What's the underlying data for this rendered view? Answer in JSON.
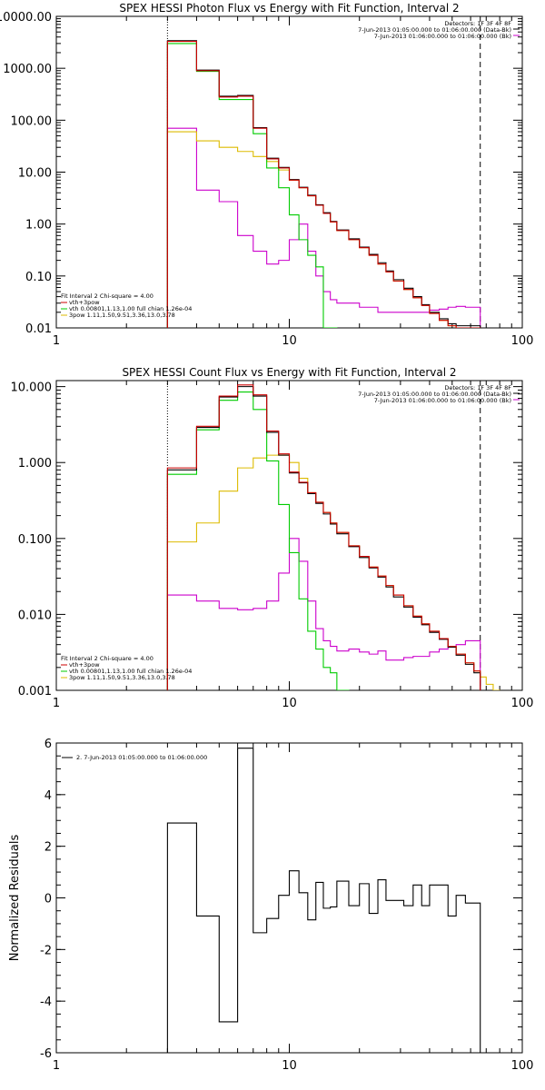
{
  "colors": {
    "total": "#000000",
    "vth_3pow": "#cc0000",
    "vth": "#00cc00",
    "three_pow": "#ddbb00",
    "bk": "#cc00cc"
  },
  "chart_data": [
    {
      "type": "line",
      "title": "SPEX HESSI Photon Flux vs Energy with Fit Function, Interval 2",
      "xlabel": "",
      "ylabel": "",
      "xscale": "log",
      "yscale": "log",
      "xlim": [
        1,
        100
      ],
      "ylim": [
        0.01,
        10000
      ],
      "xticks": [
        1,
        10,
        100
      ],
      "xticklabels": [
        "1",
        "10",
        "100"
      ],
      "yticks": [
        0.01,
        0.1,
        1,
        10,
        100,
        1000,
        10000
      ],
      "yticklabels": [
        "0.01",
        "0.10",
        "1.00",
        "10.00",
        "100.00",
        "1000.00",
        "10000.00"
      ],
      "vlines": [
        {
          "x": 3,
          "style": "dotted"
        },
        {
          "x": 66,
          "style": "dashed"
        }
      ],
      "info_lines": [
        "Detectors: 1F 3F 4F 8F",
        "7-Jun-2013 01:05:00.000 to 01:06:00.000 (Data-Bk)",
        "7-Jun-2013 01:06:00.000 to 01:06:00.000 (Bk)"
      ],
      "fit_label": "Fit Interval 2   Chi-square = 4.00",
      "edges": [
        3,
        4,
        5,
        6,
        7,
        8,
        9,
        10,
        11,
        12,
        13,
        14,
        15,
        16,
        18,
        20,
        22,
        24,
        26,
        28,
        31,
        34,
        37,
        40,
        44,
        48,
        52,
        57,
        62,
        66
      ],
      "series": [
        {
          "name": "vth+3pow",
          "color_key": "vth_3pow",
          "values": [
            3300,
            900,
            280,
            290,
            70,
            18,
            12,
            7,
            5,
            3.5,
            2.3,
            1.6,
            1.1,
            0.75,
            0.5,
            0.35,
            0.25,
            0.17,
            0.12,
            0.08,
            0.055,
            0.038,
            0.027,
            0.019,
            0.014,
            0.011,
            0.01,
            0.01,
            0.01
          ]
        },
        {
          "name": "",
          "color_key": "total",
          "values": [
            3400,
            920,
            290,
            300,
            72,
            18.5,
            12.3,
            7.2,
            5.1,
            3.6,
            2.35,
            1.65,
            1.12,
            0.77,
            0.52,
            0.36,
            0.26,
            0.18,
            0.125,
            0.085,
            0.058,
            0.04,
            0.028,
            0.02,
            0.015,
            0.012,
            0.011,
            0.011,
            0.011
          ]
        },
        {
          "name": "vth 0.00801,1.13,1.00  full chian 1.26e-04",
          "color_key": "vth",
          "values": [
            3000,
            870,
            250,
            250,
            55,
            12,
            5,
            1.5,
            0.5,
            0.25,
            0.15,
            0.01,
            0.01
          ]
        },
        {
          "name": "3pow 1.11,1.50,9.51,3.36,13.0,3.78",
          "color_key": "three_pow",
          "values": [
            60,
            40,
            30,
            25,
            20,
            16,
            11,
            7,
            5,
            3.5,
            2.3,
            1.6,
            1.1,
            0.75,
            0.5,
            0.35,
            0.25,
            0.17,
            0.12,
            0.08,
            0.055,
            0.038,
            0.027,
            0.019,
            0.014,
            0.011,
            0.01,
            0.01,
            0.01
          ]
        },
        {
          "name": "",
          "color_key": "bk",
          "values": [
            70,
            4.5,
            2.7,
            0.6,
            0.3,
            0.17,
            0.2,
            0.5,
            1.0,
            0.3,
            0.1,
            0.05,
            0.035,
            0.03,
            0.03,
            0.025,
            0.025,
            0.02,
            0.02,
            0.02,
            0.02,
            0.02,
            0.02,
            0.022,
            0.023,
            0.025,
            0.026,
            0.025,
            0.025
          ]
        }
      ]
    },
    {
      "type": "line",
      "title": "SPEX HESSI Count Flux vs Energy with Fit Function, Interval 2",
      "xlabel": "",
      "ylabel": "",
      "xscale": "log",
      "yscale": "log",
      "xlim": [
        1,
        100
      ],
      "ylim": [
        0.001,
        12
      ],
      "xticks": [
        1,
        10,
        100
      ],
      "xticklabels": [
        "1",
        "10",
        "100"
      ],
      "yticks": [
        0.001,
        0.01,
        0.1,
        1,
        10
      ],
      "yticklabels": [
        "0.001",
        "0.010",
        "0.100",
        "1.000",
        "10.000"
      ],
      "vlines": [
        {
          "x": 3,
          "style": "dotted"
        },
        {
          "x": 66,
          "style": "dashed"
        }
      ],
      "info_lines": [
        "Detectors: 1F 3F 4F 8F",
        "7-Jun-2013 01:05:00.000 to 01:06:00.000 (Data-Bk)",
        "7-Jun-2013 01:06:00.000 to 01:06:00.000 (Bk)"
      ],
      "fit_label": "Fit Interval 2   Chi-square = 4.00",
      "edges": [
        3,
        4,
        5,
        6,
        7,
        8,
        9,
        10,
        11,
        12,
        13,
        14,
        15,
        16,
        18,
        20,
        22,
        24,
        26,
        28,
        31,
        34,
        37,
        40,
        44,
        48,
        52,
        57,
        62,
        66,
        70,
        75,
        80
      ],
      "series": [
        {
          "name": "vth+3pow",
          "color_key": "vth_3pow",
          "values": [
            0.85,
            3.0,
            7.5,
            10.5,
            7.8,
            2.6,
            1.3,
            0.75,
            0.55,
            0.4,
            0.3,
            0.22,
            0.16,
            0.12,
            0.08,
            0.058,
            0.042,
            0.032,
            0.024,
            0.018,
            0.013,
            0.0095,
            0.0075,
            0.006,
            0.0048,
            0.0038,
            0.003,
            0.0023,
            0.0018
          ]
        },
        {
          "name": "",
          "color_key": "total",
          "values": [
            0.8,
            2.9,
            7.3,
            10,
            7.5,
            2.5,
            1.25,
            0.73,
            0.54,
            0.39,
            0.29,
            0.21,
            0.155,
            0.115,
            0.078,
            0.056,
            0.041,
            0.031,
            0.023,
            0.017,
            0.0125,
            0.0092,
            0.0073,
            0.0058,
            0.0047,
            0.0037,
            0.0029,
            0.0022,
            0.0017
          ]
        },
        {
          "name": "vth 0.00801,1.13,1.00  full chian 1.26e-04",
          "color_key": "vth",
          "values": [
            0.7,
            2.7,
            6.6,
            8.5,
            5.0,
            1.05,
            0.28,
            0.065,
            0.016,
            0.006,
            0.0035,
            0.002,
            0.0017,
            0.001
          ]
        },
        {
          "name": "3pow 1.11,1.50,9.51,3.36,13.0,3.78",
          "color_key": "three_pow",
          "values": [
            0.09,
            0.16,
            0.42,
            0.85,
            1.15,
            1.25,
            1.25,
            1.0,
            0.62,
            0.4,
            0.3,
            0.22,
            0.16,
            0.12,
            0.08,
            0.058,
            0.042,
            0.032,
            0.024,
            0.018,
            0.013,
            0.0095,
            0.0075,
            0.006,
            0.0048,
            0.0038,
            0.003,
            0.0023,
            0.0018,
            0.0015,
            0.0012,
            0.001
          ]
        },
        {
          "name": "",
          "color_key": "bk",
          "values": [
            0.018,
            0.015,
            0.012,
            0.0115,
            0.012,
            0.015,
            0.035,
            0.1,
            0.05,
            0.015,
            0.0065,
            0.0045,
            0.0038,
            0.0033,
            0.0035,
            0.0032,
            0.003,
            0.0033,
            0.0025,
            0.0025,
            0.0027,
            0.0028,
            0.0028,
            0.0032,
            0.0035,
            0.0038,
            0.004,
            0.0045,
            0.0045
          ]
        }
      ]
    },
    {
      "type": "line",
      "title": "",
      "xlabel": "",
      "ylabel": "Normalized Residuals",
      "xscale": "log",
      "yscale": "linear",
      "xlim": [
        1,
        100
      ],
      "ylim": [
        -6,
        6
      ],
      "xticks": [
        1,
        10,
        100
      ],
      "xticklabels": [
        "1",
        "10",
        "100"
      ],
      "yticks": [
        -6,
        -4,
        -2,
        0,
        2,
        4,
        6
      ],
      "yticklabels": [
        "-6",
        "-4",
        "-2",
        "0",
        "2",
        "4",
        "6"
      ],
      "legend": "2.  7-Jun-2013 01:05:00.000 to 01:06:00.000",
      "edges": [
        3,
        4,
        5,
        6,
        7,
        8,
        9,
        10,
        11,
        12,
        13,
        14,
        15,
        16,
        18,
        20,
        22,
        24,
        26,
        28,
        31,
        34,
        37,
        40,
        44,
        48,
        52,
        57,
        62,
        66
      ],
      "series": [
        {
          "name": "",
          "color_key": "total",
          "values": [
            2.9,
            -0.7,
            -4.8,
            5.8,
            -1.35,
            -0.8,
            0.1,
            1.05,
            0.2,
            -0.85,
            0.6,
            -0.4,
            -0.35,
            0.65,
            -0.3,
            0.55,
            -0.6,
            0.7,
            -0.1,
            -0.1,
            -0.3,
            0.5,
            -0.3,
            0.5,
            0.5,
            -0.7,
            0.1,
            -0.2,
            -0.2
          ]
        }
      ]
    }
  ]
}
